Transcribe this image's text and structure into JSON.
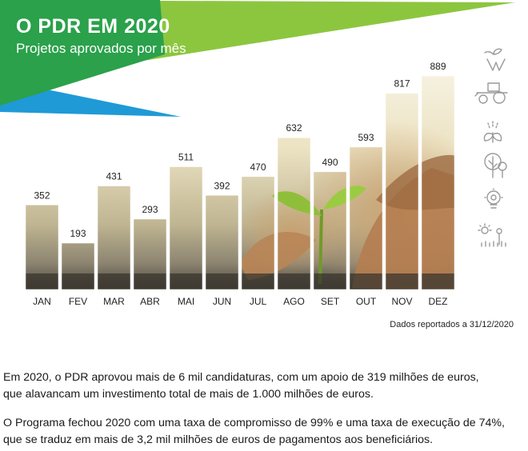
{
  "header": {
    "title": "O PDR EM 2020",
    "subtitle": "Projetos aprovados por mês",
    "colors": {
      "green_dark": "#2aa14a",
      "green_light": "#8cc63f",
      "blue": "#1f9ad6"
    }
  },
  "chart_data": {
    "type": "bar",
    "categories": [
      "JAN",
      "FEV",
      "MAR",
      "ABR",
      "MAI",
      "JUN",
      "JUL",
      "AGO",
      "SET",
      "OUT",
      "NOV",
      "DEZ"
    ],
    "values": [
      352,
      193,
      431,
      293,
      511,
      392,
      470,
      632,
      490,
      593,
      817,
      889
    ],
    "data_labels": [
      "352",
      "193",
      "431",
      "293",
      "511",
      "392",
      "470",
      "632",
      "490",
      "593",
      "817",
      "889"
    ],
    "title": "O PDR EM 2020",
    "subtitle": "Projetos aprovados por mês",
    "ylim": [
      0,
      889
    ],
    "grid": false,
    "legend": "none"
  },
  "side_icons": [
    "sprout-hands-icon",
    "tractor-icon",
    "plant-watering-icon",
    "tree-icon",
    "lightbulb-icon",
    "sun-crops-icon"
  ],
  "footnote": "Dados reportados a 31/12/2020",
  "paragraphs": [
    {
      "line1": "Em 2020, o PDR aprovou mais de 6 mil candidaturas, com um apoio de 319 milhões de euros,",
      "line2": "que alavancam um investimento total de mais de 1.000 milhões de euros."
    },
    {
      "line1": "O Programa fechou 2020 com uma taxa de compromisso de 99% e uma taxa de execução de 74%,",
      "line2": "que se traduz em mais de 3,2 mil milhões de euros de pagamentos aos beneficiários."
    }
  ]
}
